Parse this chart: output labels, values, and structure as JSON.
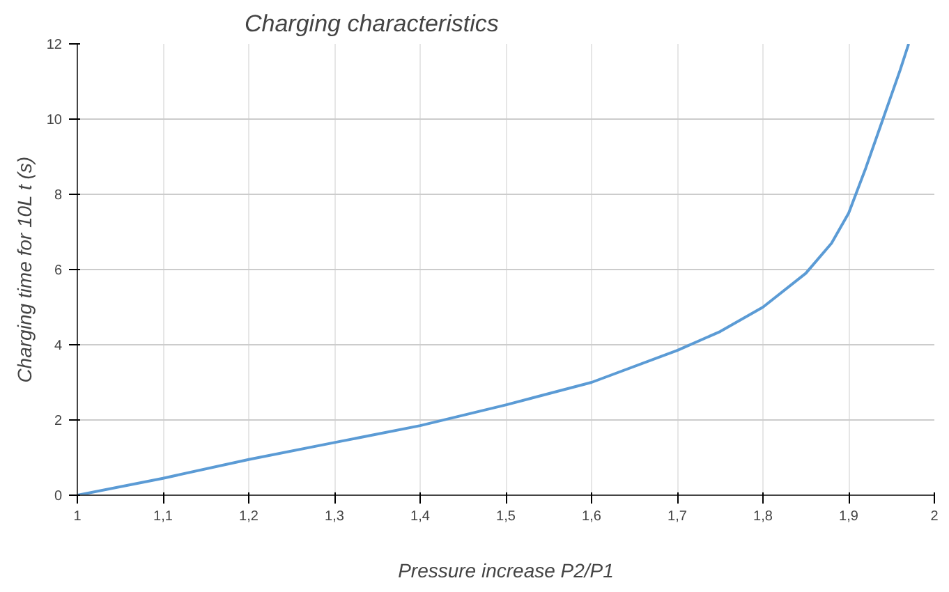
{
  "chart_data": {
    "type": "line",
    "title": "Charging characteristics",
    "xlabel": "Pressure increase P2/P1",
    "ylabel": "Charging time for 10L t (s)",
    "x": [
      1.0,
      1.1,
      1.2,
      1.3,
      1.4,
      1.5,
      1.6,
      1.7,
      1.75,
      1.8,
      1.85,
      1.88,
      1.9,
      1.92,
      1.94,
      1.96,
      1.97
    ],
    "series": [
      {
        "color": "#5b9bd5",
        "values": [
          0,
          0.45,
          0.95,
          1.4,
          1.85,
          2.4,
          3.0,
          3.85,
          4.35,
          5.0,
          5.9,
          6.7,
          7.5,
          8.7,
          10.0,
          11.3,
          12.0
        ]
      }
    ],
    "xlim": [
      1,
      2
    ],
    "ylim": [
      0,
      12
    ],
    "xticks": [
      1,
      {
        "value": 1.1,
        "label": "1,1"
      },
      {
        "value": 1.2,
        "label": "1,2"
      },
      {
        "value": 1.3,
        "label": "1,3"
      },
      {
        "value": 1.4,
        "label": "1,4"
      },
      {
        "value": 1.5,
        "label": "1,5"
      },
      {
        "value": 1.6,
        "label": "1,6"
      },
      {
        "value": 1.7,
        "label": "1,7"
      },
      {
        "value": 1.8,
        "label": "1,8"
      },
      {
        "value": 1.9,
        "label": "1,9"
      },
      2
    ],
    "yticks": [
      0,
      2,
      4,
      6,
      8,
      10,
      12
    ],
    "grid": true,
    "marker": "none",
    "line_style": "solid"
  }
}
